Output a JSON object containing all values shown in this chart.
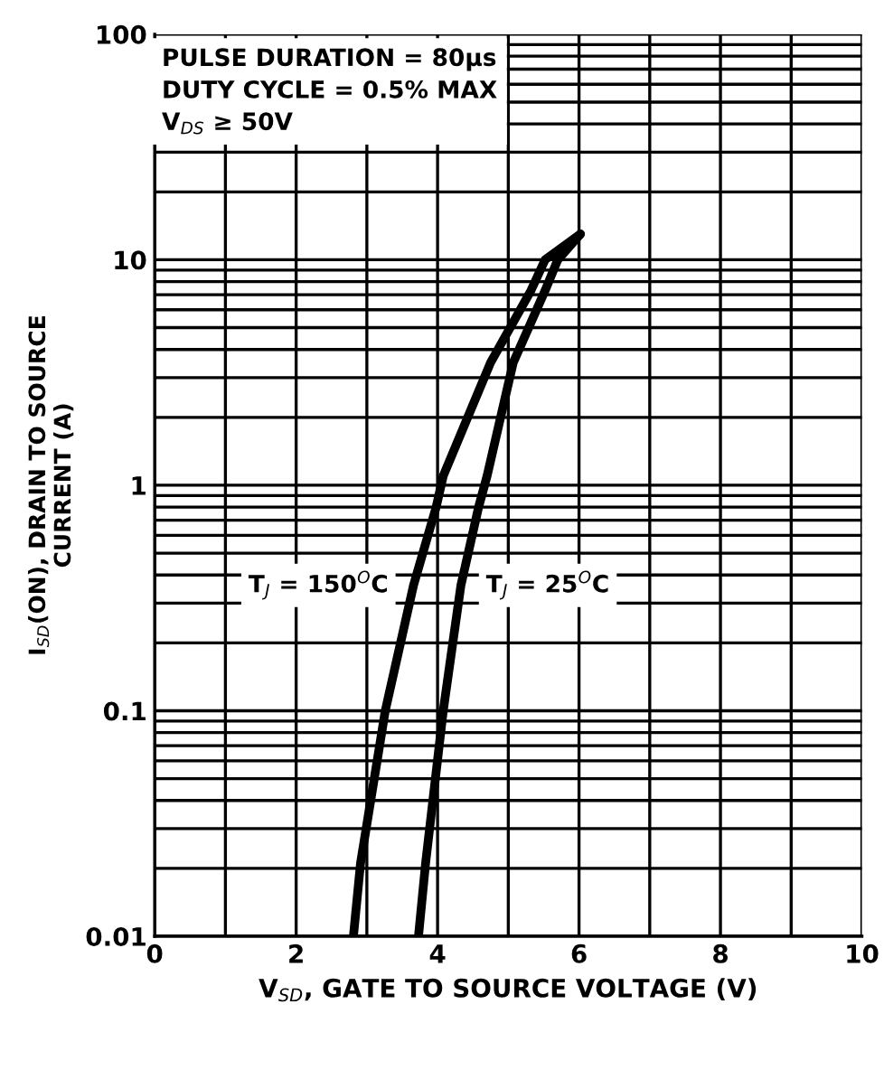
{
  "chart_data": {
    "type": "line",
    "xlabel": "V$_{SD}$, GATE TO SOURCE VOLTAGE (V)",
    "ylabel": "I$_{SD}$(ON), DRAIN TO SOURCE\nCURRENT (A)",
    "annotations": [
      "PULSE DURATION = 80µs\nDUTY CYCLE = 0.5% MAX\nV$_{DS}$ ≥ 50V"
    ],
    "series": [
      {
        "name": "T$_{J}$ = 150$^{O}$C",
        "color": "#000000",
        "x": [
          2.81,
          2.91,
          3.26,
          3.66,
          3.98,
          4.08,
          4.75,
          5.32,
          5.52,
          6.02
        ],
        "values": [
          0.01,
          0.021,
          0.1,
          0.36,
          0.8,
          1.1,
          3.5,
          7.3,
          10,
          13
        ]
      },
      {
        "name": "T$_{J}$ = 25$^{O}$C",
        "color": "#000000",
        "x": [
          3.73,
          3.83,
          4.08,
          4.33,
          4.58,
          4.7,
          5.07,
          5.52,
          5.7,
          6.02
        ],
        "values": [
          0.01,
          0.021,
          0.1,
          0.36,
          0.8,
          1.1,
          3.5,
          7.3,
          10,
          13
        ]
      }
    ],
    "xlim": [
      0,
      10
    ],
    "xticks": [
      0,
      {
        "value": 1,
        "label": null
      },
      2,
      {
        "value": 3,
        "label": null
      },
      4,
      {
        "value": 5,
        "label": null
      },
      6,
      {
        "value": 7,
        "label": null
      },
      8,
      {
        "value": 9,
        "label": null
      },
      10
    ],
    "ylim": [
      0.01,
      100
    ],
    "yticks": [
      0.01,
      0.1,
      1,
      10,
      100
    ],
    "log": true,
    "grid": true,
    "legend": false,
    "marker": "none",
    "line_style": "solid"
  }
}
